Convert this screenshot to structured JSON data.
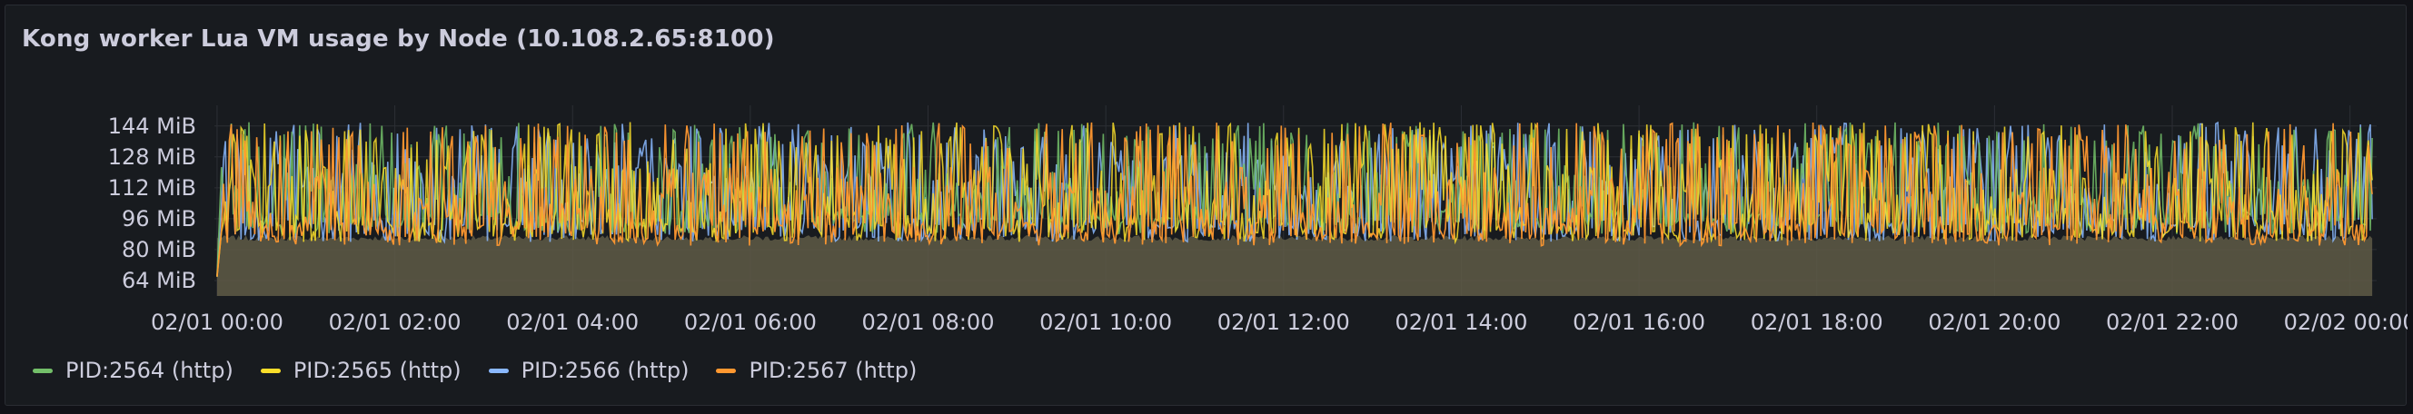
{
  "panel": {
    "title": "Kong worker Lua VM usage by Node (10.108.2.65:8100)"
  },
  "legend": [
    {
      "label": "PID:2564 (http)",
      "color": "#73bf69"
    },
    {
      "label": "PID:2565 (http)",
      "color": "#fade2a"
    },
    {
      "label": "PID:2566 (http)",
      "color": "#8ab8ff"
    },
    {
      "label": "PID:2567 (http)",
      "color": "#ff9830"
    }
  ],
  "chart_data": {
    "type": "line",
    "fill": "stacked-area-under-series",
    "y_unit": "MiB",
    "y_ticks": [
      "64 MiB",
      "80 MiB",
      "96 MiB",
      "112 MiB",
      "128 MiB",
      "144 MiB"
    ],
    "y_tick_values": [
      64,
      80,
      96,
      112,
      128,
      144
    ],
    "ylim": [
      56,
      150
    ],
    "x_ticks": [
      "02/01 00:00",
      "02/01 02:00",
      "02/01 04:00",
      "02/01 06:00",
      "02/01 08:00",
      "02/01 10:00",
      "02/01 12:00",
      "02/01 14:00",
      "02/01 16:00",
      "02/01 18:00",
      "02/01 20:00",
      "02/01 22:00",
      "02/02 00:00"
    ],
    "x_tick_hours": [
      0,
      2,
      4,
      6,
      8,
      10,
      12,
      14,
      16,
      18,
      20,
      22,
      24
    ],
    "x_range_hours": [
      -0.03,
      24.3
    ],
    "grid": true,
    "legend_position": "bottom-left",
    "series": [
      {
        "name": "PID:2564 (http)",
        "color": "#73bf69",
        "min": 88,
        "max": 146,
        "typical": 110
      },
      {
        "name": "PID:2565 (http)",
        "color": "#fade2a",
        "min": 84,
        "max": 146,
        "typical": 112
      },
      {
        "name": "PID:2566 (http)",
        "color": "#8ab8ff",
        "min": 84,
        "max": 146,
        "typical": 118
      },
      {
        "name": "PID:2567 (http)",
        "color": "#ff9830",
        "min": 82,
        "max": 146,
        "typical": 108
      }
    ]
  }
}
